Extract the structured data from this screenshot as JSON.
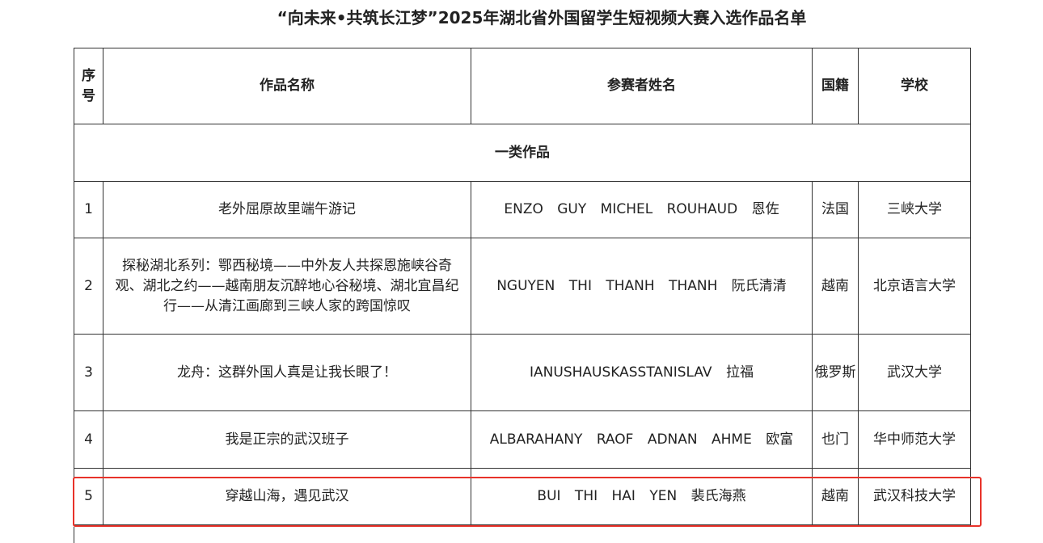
{
  "title": "“向未来•共筑长江梦”2025年湖北省外国留学生短视频大赛入选作品名单",
  "headers": [
    "序号",
    "作品名称",
    "参赛者姓名",
    "国籍",
    "学校"
  ],
  "category": "一类作品",
  "rows": [
    {
      "no": "1",
      "work": "老外屈原故里端午游记",
      "name": "ENZO GUY MICHEL ROUHAUD 恩佐",
      "nationality": "法国",
      "school": "三峡大学"
    },
    {
      "no": "2",
      "work": "探秘湖北系列：鄂西秘境——中外友人共探恩施峡谷奇观、湖北之约——越南朋友沉醉地心谷秘境、湖北宜昌纪行——从清江画廊到三峡人家的跨国惊叹",
      "name": "NGUYEN THI THANH THANH 阮氏清清",
      "nationality": "越南",
      "school": "北京语言大学"
    },
    {
      "no": "3",
      "work": "龙舟：这群外国人真是让我长眼了！",
      "name": "IANUSHAUSKASSTANISLAV 拉福",
      "nationality": "俄罗斯",
      "school": "武汉大学"
    },
    {
      "no": "4",
      "work": "我是正宗的武汉班子",
      "name": "ALBARAHANY RAOF ADNAN AHME 欧富",
      "nationality": "也门",
      "school": "华中师范大学"
    },
    {
      "no": "5",
      "work": "穿越山海，遇见武汉",
      "name": "BUI THI HAI YEN 裴氏海燕",
      "nationality": "越南",
      "school": "武汉科技大学"
    }
  ],
  "highlight_color": "#e8322a"
}
